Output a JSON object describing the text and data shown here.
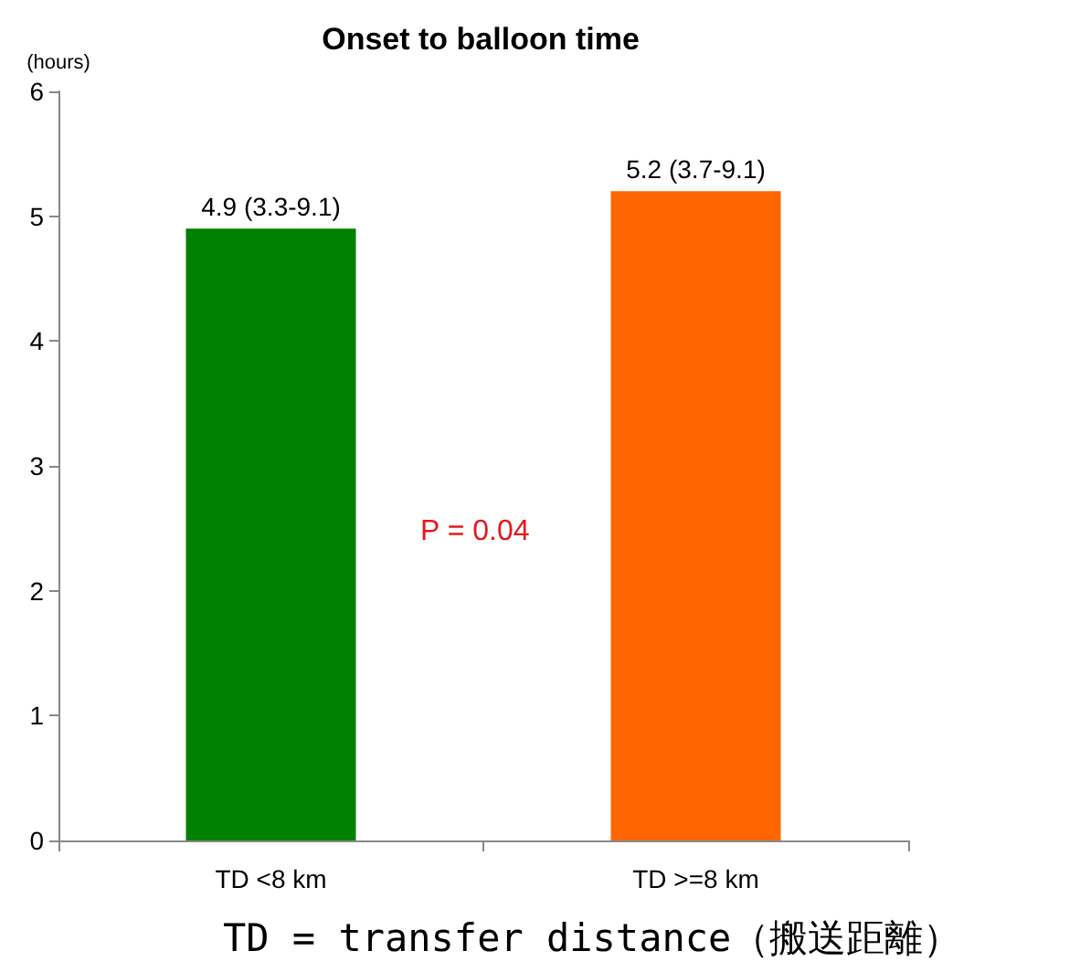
{
  "chart_data": {
    "type": "bar",
    "title": "Onset to balloon time",
    "ylabel": "(hours)",
    "categories": [
      "TD <8 km",
      "TD >=8 km"
    ],
    "values": [
      4.9,
      5.2
    ],
    "colors": [
      "#008000",
      "#ff6600"
    ],
    "value_labels": [
      "4.9 (3.3-9.1)",
      "5.2 (3.7-9.1)"
    ],
    "ylim": [
      0,
      6
    ],
    "yticks": [
      0,
      1,
      2,
      3,
      4,
      5,
      6
    ],
    "grid": false,
    "annotations": [
      "P = 0.04",
      "TD = transfer distance（搬送距離）"
    ]
  }
}
